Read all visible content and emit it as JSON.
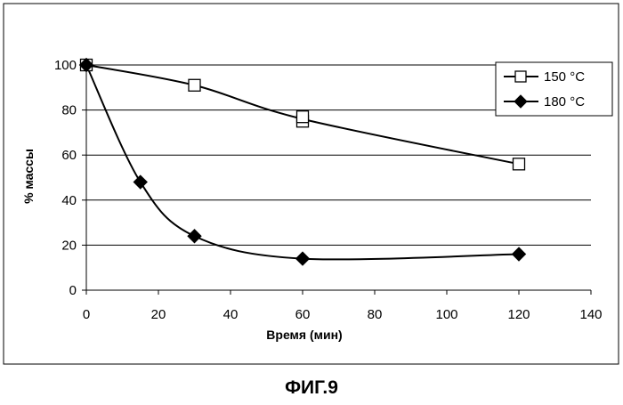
{
  "chart_data": {
    "type": "line",
    "title": "",
    "xlabel": "Время (мин)",
    "ylabel": "% массы",
    "xlim": [
      0,
      140
    ],
    "ylim": [
      0,
      100
    ],
    "x_ticks": [
      0,
      20,
      40,
      60,
      80,
      100,
      120,
      140
    ],
    "y_ticks": [
      0,
      20,
      40,
      60,
      80,
      100
    ],
    "grid": "horizontal",
    "legend_position": "top-right",
    "series": [
      {
        "name": "150 °C",
        "marker": "open-square",
        "color": "#000000",
        "points": [
          {
            "x": 0,
            "y": 100
          },
          {
            "x": 30,
            "y": 91
          },
          {
            "x": 60,
            "y": 75
          },
          {
            "x": 60,
            "y": 77
          },
          {
            "x": 120,
            "y": 56
          }
        ]
      },
      {
        "name": "180 °C",
        "marker": "filled-diamond",
        "color": "#000000",
        "points": [
          {
            "x": 0,
            "y": 100
          },
          {
            "x": 15,
            "y": 48
          },
          {
            "x": 30,
            "y": 24
          },
          {
            "x": 60,
            "y": 14
          },
          {
            "x": 120,
            "y": 16
          }
        ]
      }
    ]
  },
  "caption": "ФИГ.9"
}
